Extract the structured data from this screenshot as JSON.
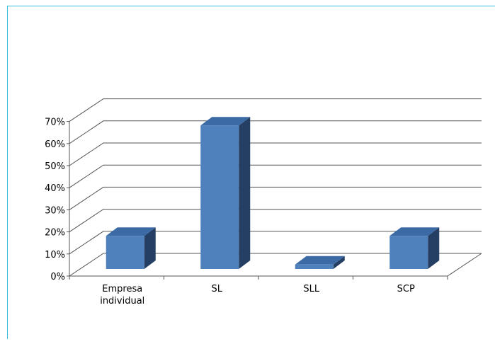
{
  "chart_data": {
    "type": "bar",
    "title": "",
    "xlabel": "",
    "ylabel": "",
    "categories": [
      "Empresa individual",
      "SL",
      "SLL",
      "SCP"
    ],
    "category_lines": [
      [
        "Empresa",
        "individual"
      ],
      [
        "SL"
      ],
      [
        "SLL"
      ],
      [
        "SCP"
      ]
    ],
    "values": [
      15,
      65,
      2,
      15
    ],
    "ylim": [
      0,
      70
    ],
    "yticks": [
      0,
      10,
      20,
      30,
      40,
      50,
      60,
      70
    ],
    "ytick_labels": [
      "0%",
      "10%",
      "20%",
      "30%",
      "40%",
      "50%",
      "60%",
      "70%"
    ],
    "grid": true,
    "legend": "none",
    "style": "3d-column",
    "colors": {
      "bar_front": "#4f81bd",
      "bar_top": "#3b6aa5",
      "bar_side": "#243f63",
      "grid": "#555555",
      "frame": "#39bfd9"
    }
  }
}
